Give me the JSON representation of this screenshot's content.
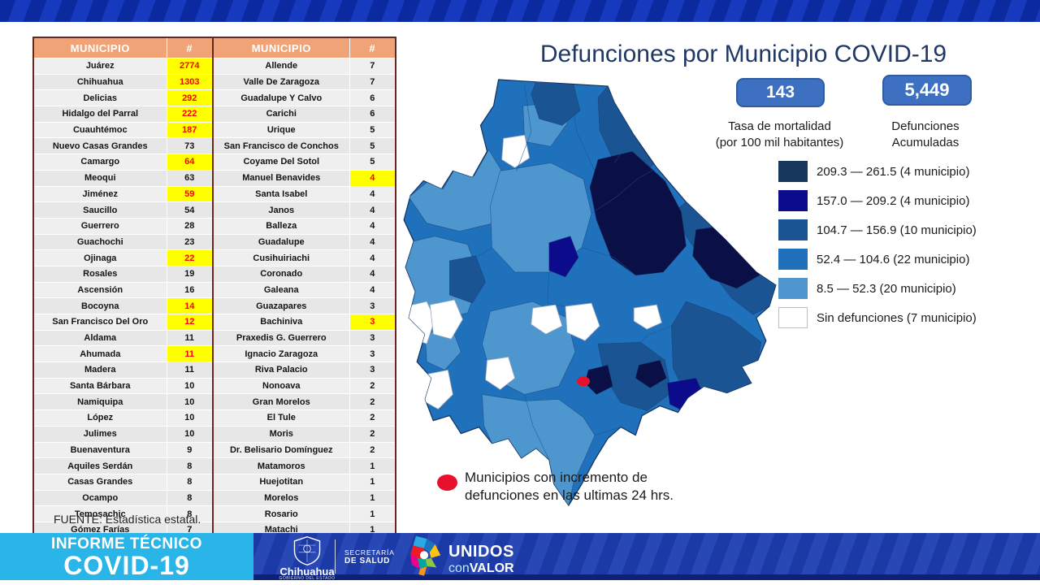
{
  "title": "Defunciones por Municipio COVID-19",
  "source": "FUENTE:  Estadística estatal.",
  "stats": [
    {
      "value": "143",
      "label1": "Tasa de mortalidad",
      "label2": "(por 100 mil habitantes)"
    },
    {
      "value": "5,449",
      "label1": "Defunciones",
      "label2": "Acumuladas"
    }
  ],
  "legend": {
    "items": [
      {
        "label": "209.3 — 261.5 (4 municipio)",
        "color": "#17375D"
      },
      {
        "label": "157.0 — 209.2 (4 municipio)",
        "color": "#0B0B8B"
      },
      {
        "label": "104.7 — 156.9 (10 municipio)",
        "color": "#1B5493"
      },
      {
        "label": "52.4 — 104.6 (22 municipio)",
        "color": "#2071BC"
      },
      {
        "label": "8.5 — 52.3 (20 municipio)",
        "color": "#4D96CE"
      },
      {
        "label": "Sin defunciones (7 municipio)",
        "color": "#FFFFFF"
      }
    ]
  },
  "note": {
    "line1": "Municipios con incremento de",
    "line2": "defunciones en las ultimas 24 hrs."
  },
  "table": {
    "headers": [
      "MUNICIPIO",
      "#",
      "MUNICIPIO",
      "#"
    ]
  },
  "footer": {
    "informe": {
      "line1": "INFORME TÉCNICO",
      "line2": "COVID-19"
    },
    "gov": {
      "name": "Chihuahua",
      "sub": "GOBIERNO DEL ESTADO"
    },
    "secretaria": {
      "line1": "SECRETARÍA",
      "line2": "DE SALUD"
    },
    "unidos": {
      "word1": "UNIDOS",
      "word2": "con",
      "word3": "VALOR"
    }
  },
  "colors": {
    "accent_box": "#3E70C1",
    "title": "#1F3864",
    "table_header": "#F0A376",
    "highlight_bg": "#FFFF00",
    "highlight_text": "#FF0000",
    "red_dot": "#E8112D",
    "footer_cyan": "#29B5E8",
    "band_blue_dark": "#0C2AA0",
    "band_blue_light": "#1739BE"
  },
  "chart_data": {
    "type": "table",
    "title": "Defunciones por Municipio COVID-19",
    "columns": [
      "MUNICIPIO",
      "#"
    ],
    "rows": [
      [
        "Juárez",
        2774
      ],
      [
        "Chihuahua",
        1303
      ],
      [
        "Delicias",
        292
      ],
      [
        "Hidalgo del Parral",
        222
      ],
      [
        "Cuauhtémoc",
        187
      ],
      [
        "Nuevo Casas Grandes",
        73
      ],
      [
        "Camargo",
        64
      ],
      [
        "Meoqui",
        63
      ],
      [
        "Jiménez",
        59
      ],
      [
        "Saucillo",
        54
      ],
      [
        "Guerrero",
        28
      ],
      [
        "Guachochi",
        23
      ],
      [
        "Ojinaga",
        22
      ],
      [
        "Rosales",
        19
      ],
      [
        "Ascensión",
        16
      ],
      [
        "Bocoyna",
        14
      ],
      [
        "San Francisco Del Oro",
        12
      ],
      [
        "Aldama",
        11
      ],
      [
        "Ahumada",
        11
      ],
      [
        "Madera",
        11
      ],
      [
        "Santa Bárbara",
        10
      ],
      [
        "Namiquipa",
        10
      ],
      [
        "López",
        10
      ],
      [
        "Julimes",
        10
      ],
      [
        "Buenaventura",
        9
      ],
      [
        "Aquiles Serdán",
        8
      ],
      [
        "Casas Grandes",
        8
      ],
      [
        "Ocampo",
        8
      ],
      [
        "Temosachic",
        8
      ],
      [
        "Gómez Farías",
        7
      ],
      [
        "Allende",
        7
      ],
      [
        "Valle De Zaragoza",
        7
      ],
      [
        "Guadalupe Y Calvo",
        6
      ],
      [
        "Carichi",
        6
      ],
      [
        "Urique",
        5
      ],
      [
        "San Francisco de Conchos",
        5
      ],
      [
        "Coyame Del Sotol",
        5
      ],
      [
        "Manuel Benavides",
        4
      ],
      [
        "Santa Isabel",
        4
      ],
      [
        "Janos",
        4
      ],
      [
        "Balleza",
        4
      ],
      [
        "Guadalupe",
        4
      ],
      [
        "Cusihuiriachi",
        4
      ],
      [
        "Coronado",
        4
      ],
      [
        "Galeana",
        4
      ],
      [
        "Guazapares",
        3
      ],
      [
        "Bachiniva",
        3
      ],
      [
        "Praxedis G. Guerrero",
        3
      ],
      [
        "Ignacio Zaragoza",
        3
      ],
      [
        "Riva Palacio",
        3
      ],
      [
        "Nonoava",
        2
      ],
      [
        "Gran Morelos",
        2
      ],
      [
        "El Tule",
        2
      ],
      [
        "Moris",
        2
      ],
      [
        "Dr. Belisario Domínguez",
        2
      ],
      [
        "Matamoros",
        1
      ],
      [
        "Huejotitan",
        1
      ],
      [
        "Morelos",
        1
      ],
      [
        "Rosario",
        1
      ],
      [
        "Matachi",
        1
      ]
    ],
    "highlighted_rows": [
      "Juárez",
      "Chihuahua",
      "Delicias",
      "Hidalgo del Parral",
      "Cuauhtémoc",
      "Camargo",
      "Jiménez",
      "Ojinaga",
      "Bocoyna",
      "San Francisco Del Oro",
      "Ahumada",
      "Manuel Benavides",
      "Bachiniva"
    ],
    "totals": {
      "tasa_de_mortalidad_por_100mil": 143,
      "defunciones_acumuladas": 5449
    },
    "legend_bins": [
      {
        "range": "209.3 — 261.5",
        "municipios": 4
      },
      {
        "range": "157.0 — 209.2",
        "municipios": 4
      },
      {
        "range": "104.7 — 156.9",
        "municipios": 10
      },
      {
        "range": "52.4 — 104.6",
        "municipios": 22
      },
      {
        "range": "8.5 — 52.3",
        "municipios": 20
      },
      {
        "range": "Sin defunciones",
        "municipios": 7
      }
    ]
  }
}
